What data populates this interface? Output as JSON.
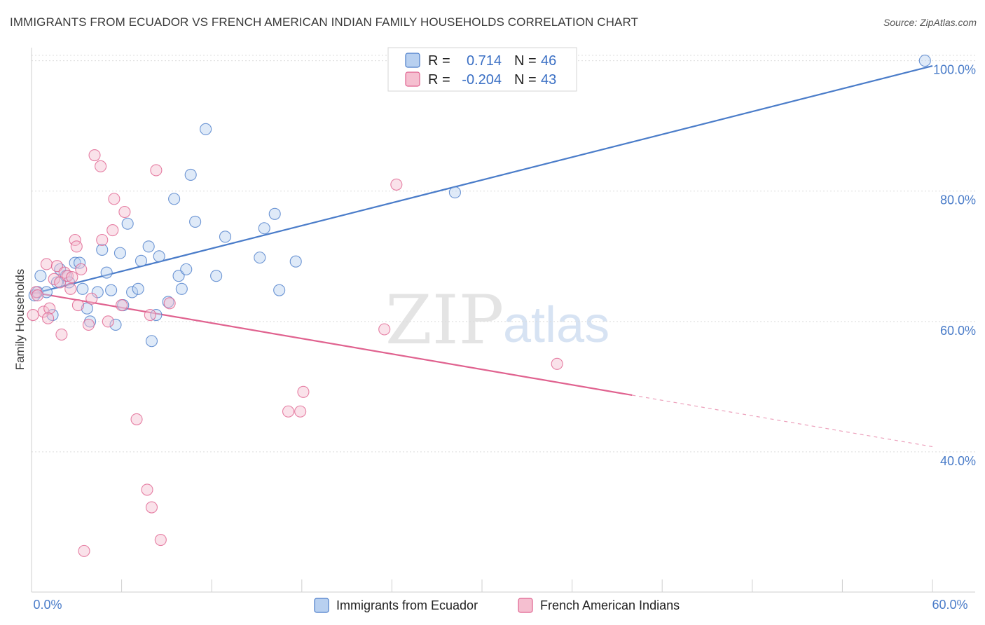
{
  "title": "IMMIGRANTS FROM ECUADOR VS FRENCH AMERICAN INDIAN FAMILY HOUSEHOLDS CORRELATION CHART",
  "source": "Source: ZipAtlas.com",
  "watermark": {
    "zip": "ZIP",
    "atlas": "atlas"
  },
  "colors": {
    "blue": "#4a7cc9",
    "blue_fill": "#b8d0f0",
    "pink": "#e0628f",
    "pink_fill": "#f5bfd0",
    "grid": "#dcdcdc"
  },
  "legend_top": {
    "rows": [
      {
        "r_label": "R =",
        "r_value": "0.714",
        "n_label": "N =",
        "n_value": "46"
      },
      {
        "r_label": "R =",
        "r_value": "-0.204",
        "n_label": "N =",
        "n_value": "43"
      }
    ]
  },
  "legend_bottom": {
    "items": [
      {
        "label": "Immigrants from Ecuador"
      },
      {
        "label": "French American Indians"
      }
    ]
  },
  "chart_data": {
    "type": "scatter",
    "title": "IMMIGRANTS FROM ECUADOR VS FRENCH AMERICAN INDIAN FAMILY HOUSEHOLDS CORRELATION CHART",
    "xlabel": "",
    "ylabel": "Family Households",
    "xlim": [
      0,
      60
    ],
    "ylim": [
      18.5,
      102
    ],
    "x_tick_labels": [
      "0.0%",
      "60.0%"
    ],
    "y_ticks": [
      40,
      60,
      80,
      100
    ],
    "y_tick_labels": [
      "40.0%",
      "60.0%",
      "80.0%",
      "100.0%"
    ],
    "series": [
      {
        "name": "Immigrants from Ecuador",
        "color": "blue",
        "r": 0.714,
        "n": 46,
        "trend": {
          "x0": 0,
          "y0": 64.2,
          "x1": 60,
          "y1": 99.2,
          "dashed_from": null
        },
        "points": [
          [
            0.2,
            64.0
          ],
          [
            0.4,
            64.5
          ],
          [
            0.6,
            67.0
          ],
          [
            1.0,
            64.5
          ],
          [
            1.4,
            61.0
          ],
          [
            1.7,
            66.0
          ],
          [
            1.9,
            68.0
          ],
          [
            2.3,
            67.0
          ],
          [
            2.5,
            66.0
          ],
          [
            2.9,
            69.0
          ],
          [
            3.2,
            69.0
          ],
          [
            3.4,
            65.0
          ],
          [
            3.7,
            62.0
          ],
          [
            3.9,
            60.0
          ],
          [
            4.4,
            64.5
          ],
          [
            4.7,
            71.0
          ],
          [
            5.0,
            67.5
          ],
          [
            5.3,
            64.8
          ],
          [
            5.6,
            59.5
          ],
          [
            5.9,
            70.5
          ],
          [
            6.1,
            62.5
          ],
          [
            6.4,
            75.0
          ],
          [
            6.7,
            64.5
          ],
          [
            7.1,
            65.0
          ],
          [
            7.3,
            69.3
          ],
          [
            7.8,
            71.5
          ],
          [
            8.0,
            57.0
          ],
          [
            8.3,
            61.0
          ],
          [
            8.5,
            70.0
          ],
          [
            9.1,
            63.0
          ],
          [
            9.5,
            78.8
          ],
          [
            9.8,
            67.0
          ],
          [
            10.0,
            65.0
          ],
          [
            10.3,
            68.0
          ],
          [
            10.6,
            82.5
          ],
          [
            10.9,
            75.3
          ],
          [
            11.6,
            89.5
          ],
          [
            12.3,
            67.0
          ],
          [
            12.9,
            73.0
          ],
          [
            15.2,
            69.8
          ],
          [
            15.5,
            74.3
          ],
          [
            16.2,
            76.5
          ],
          [
            16.5,
            64.8
          ],
          [
            17.6,
            69.2
          ],
          [
            28.2,
            79.8
          ],
          [
            59.5,
            100.0
          ]
        ]
      },
      {
        "name": "French American Indians",
        "color": "pink",
        "r": -0.204,
        "n": 43,
        "trend": {
          "x0": 0,
          "y0": 64.5,
          "x1": 60,
          "y1": 40.8,
          "dashed_from": 40
        },
        "points": [
          [
            0.1,
            61.0
          ],
          [
            0.3,
            64.5
          ],
          [
            0.4,
            64.0
          ],
          [
            0.8,
            61.5
          ],
          [
            1.0,
            68.8
          ],
          [
            1.2,
            62.0
          ],
          [
            1.5,
            66.5
          ],
          [
            1.7,
            68.5
          ],
          [
            1.9,
            66.0
          ],
          [
            2.0,
            58.0
          ],
          [
            2.2,
            67.5
          ],
          [
            2.4,
            67.0
          ],
          [
            2.6,
            65.0
          ],
          [
            2.9,
            72.5
          ],
          [
            3.0,
            71.5
          ],
          [
            3.1,
            62.5
          ],
          [
            3.3,
            68.0
          ],
          [
            3.8,
            59.5
          ],
          [
            4.0,
            63.5
          ],
          [
            4.2,
            85.5
          ],
          [
            4.6,
            83.8
          ],
          [
            4.7,
            72.5
          ],
          [
            5.1,
            60.0
          ],
          [
            5.4,
            74.0
          ],
          [
            5.5,
            78.8
          ],
          [
            6.0,
            62.5
          ],
          [
            6.2,
            76.8
          ],
          [
            7.0,
            45.0
          ],
          [
            7.7,
            34.2
          ],
          [
            7.9,
            61.0
          ],
          [
            8.0,
            31.5
          ],
          [
            8.3,
            83.2
          ],
          [
            8.6,
            26.5
          ],
          [
            9.2,
            62.8
          ],
          [
            3.5,
            24.8
          ],
          [
            17.1,
            46.2
          ],
          [
            17.9,
            46.2
          ],
          [
            18.1,
            49.2
          ],
          [
            23.5,
            58.8
          ],
          [
            24.3,
            81.0
          ],
          [
            35.0,
            53.5
          ],
          [
            2.7,
            66.8
          ],
          [
            1.1,
            60.5
          ]
        ]
      }
    ]
  }
}
